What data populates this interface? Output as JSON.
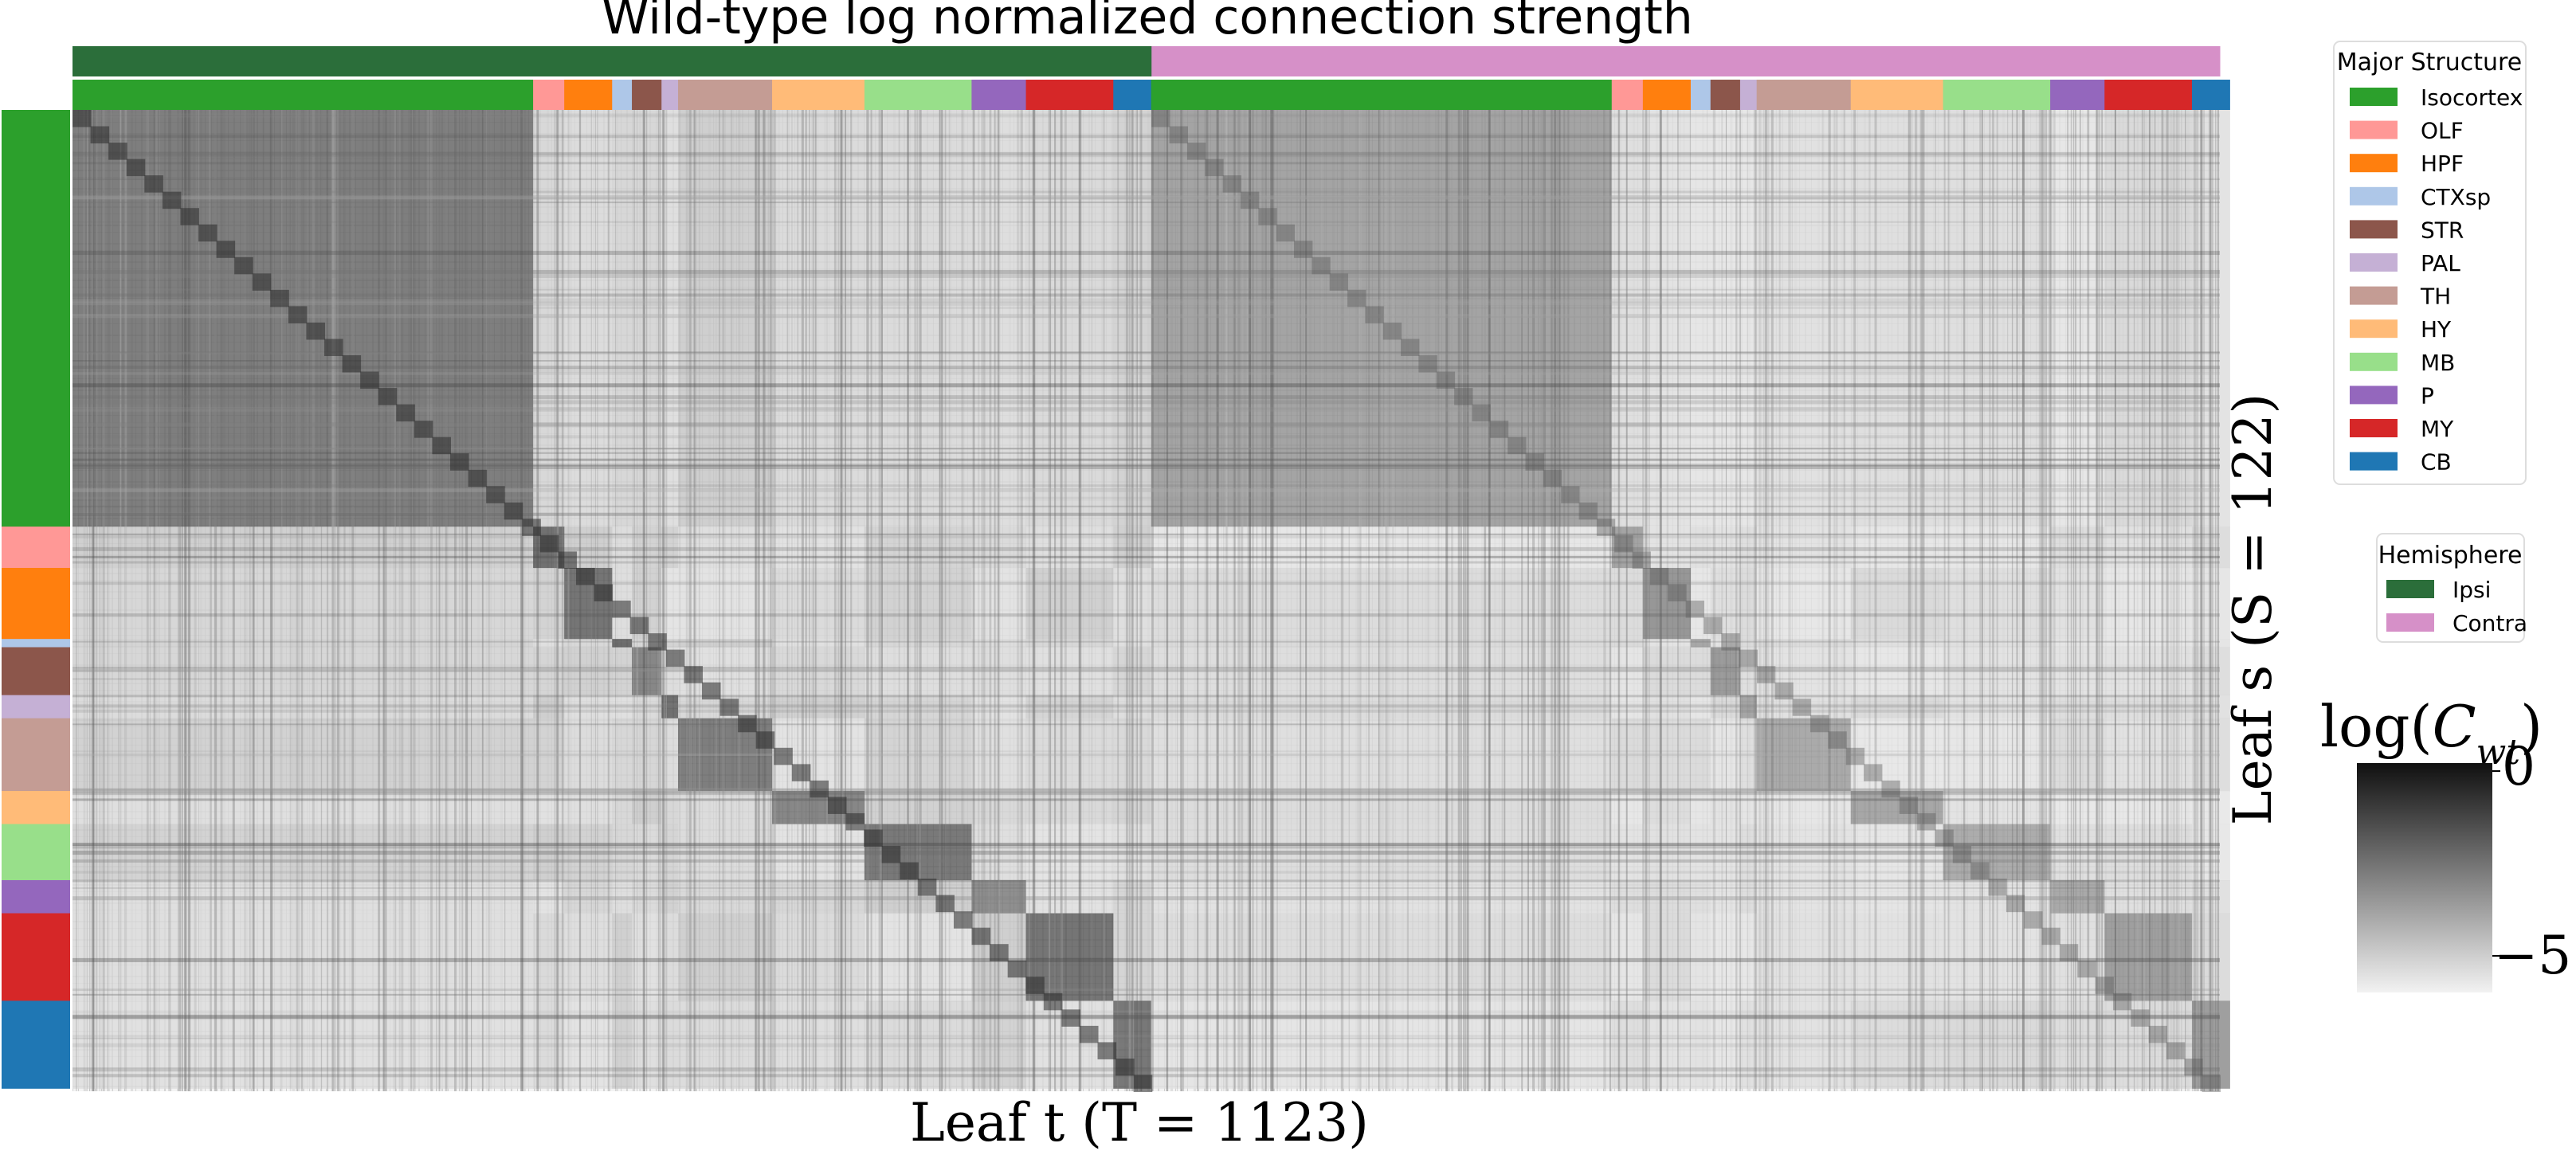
{
  "chart_data": {
    "type": "heatmap",
    "title": "Wild-type log normalized connection strength",
    "xlabel": "Leaf t (T = 1123)",
    "ylabel": "Leaf s (S = 122)",
    "n_cols": 1123,
    "n_rows": 122,
    "colormap": [
      "#f2f2f2",
      "#101010"
    ],
    "colorbar": {
      "label": "log(C^N_wt)",
      "ticks": [
        "0",
        "−5"
      ],
      "range": [
        -6,
        0
      ]
    },
    "major_structure_legend": {
      "title": "Major Structure",
      "entries": [
        {
          "name": "Isocortex",
          "color": "#2ca02c"
        },
        {
          "name": "OLF",
          "color": "#ff9896"
        },
        {
          "name": "HPF",
          "color": "#ff7f0e"
        },
        {
          "name": "CTXsp",
          "color": "#aec7e8"
        },
        {
          "name": "STR",
          "color": "#8c564b"
        },
        {
          "name": "PAL",
          "color": "#c5b0d5"
        },
        {
          "name": "TH",
          "color": "#c49c94"
        },
        {
          "name": "HY",
          "color": "#ffbb78"
        },
        {
          "name": "MB",
          "color": "#98df8a"
        },
        {
          "name": "P",
          "color": "#9467bd"
        },
        {
          "name": "MY",
          "color": "#d62728"
        },
        {
          "name": "CB",
          "color": "#1f77b4"
        }
      ]
    },
    "hemisphere_legend": {
      "title": "Hemisphere",
      "entries": [
        {
          "name": "Ipsi",
          "color": "#2b6e3a"
        },
        {
          "name": "Contra",
          "color": "#d690c8"
        }
      ]
    },
    "column_hemisphere_fraction": [
      {
        "name": "Ipsi",
        "fraction": 0.5025
      },
      {
        "name": "Contra",
        "fraction": 0.4975
      }
    ],
    "column_structure_fractions": [
      {
        "name": "Isocortex",
        "fraction": 0.2145
      },
      {
        "name": "OLF",
        "fraction": 0.0145
      },
      {
        "name": "HPF",
        "fraction": 0.0223
      },
      {
        "name": "CTXsp",
        "fraction": 0.0092
      },
      {
        "name": "STR",
        "fraction": 0.0138
      },
      {
        "name": "PAL",
        "fraction": 0.0077
      },
      {
        "name": "TH",
        "fraction": 0.0438
      },
      {
        "name": "HY",
        "fraction": 0.043
      },
      {
        "name": "MB",
        "fraction": 0.0499
      },
      {
        "name": "P",
        "fraction": 0.0253
      },
      {
        "name": "MY",
        "fraction": 0.0407
      },
      {
        "name": "CB",
        "fraction": 0.0176
      },
      {
        "name": "Isocortex",
        "fraction": 0.2145
      },
      {
        "name": "OLF",
        "fraction": 0.0145
      },
      {
        "name": "HPF",
        "fraction": 0.0223
      },
      {
        "name": "CTXsp",
        "fraction": 0.0092
      },
      {
        "name": "STR",
        "fraction": 0.0138
      },
      {
        "name": "PAL",
        "fraction": 0.0077
      },
      {
        "name": "TH",
        "fraction": 0.0438
      },
      {
        "name": "HY",
        "fraction": 0.043
      },
      {
        "name": "MB",
        "fraction": 0.0499
      },
      {
        "name": "P",
        "fraction": 0.0253
      },
      {
        "name": "MY",
        "fraction": 0.0407
      },
      {
        "name": "CB",
        "fraction": 0.0176
      }
    ],
    "row_structure_fractions": [
      {
        "name": "Isocortex",
        "fraction": 0.4246
      },
      {
        "name": "OLF",
        "fraction": 0.0421
      },
      {
        "name": "HPF",
        "fraction": 0.0724
      },
      {
        "name": "CTXsp",
        "fraction": 0.0084
      },
      {
        "name": "STR",
        "fraction": 0.0488
      },
      {
        "name": "PAL",
        "fraction": 0.0236
      },
      {
        "name": "TH",
        "fraction": 0.0741
      },
      {
        "name": "HY",
        "fraction": 0.0337
      },
      {
        "name": "MB",
        "fraction": 0.0572
      },
      {
        "name": "P",
        "fraction": 0.0337
      },
      {
        "name": "MY",
        "fraction": 0.0892
      },
      {
        "name": "CB",
        "fraction": 0.0892
      }
    ]
  }
}
